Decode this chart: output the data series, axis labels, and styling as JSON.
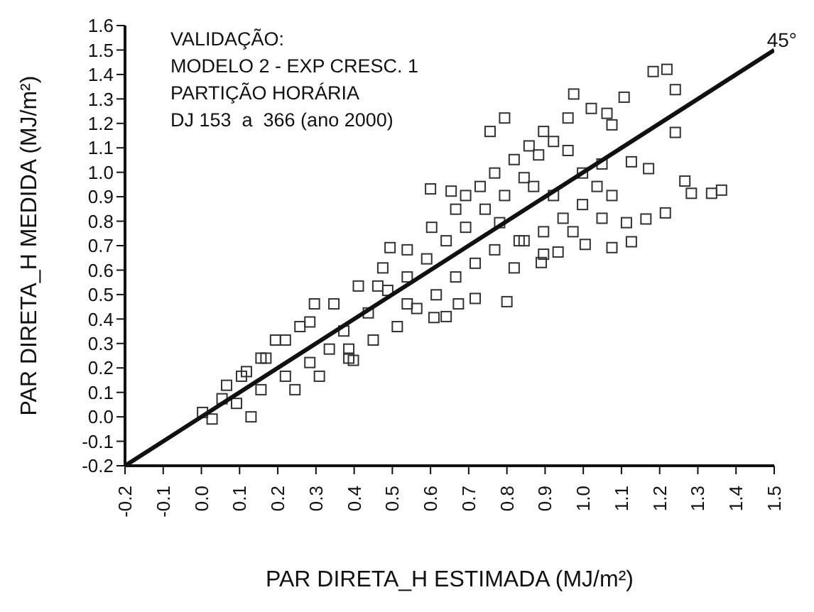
{
  "chart_data": {
    "type": "scatter",
    "xlabel": "PAR DIRETA_H  ESTIMADA (MJ/m²)",
    "ylabel": "PAR DIRETA_H  MEDIDA (MJ/m²)",
    "annotations": [
      "VALIDAÇÃO:",
      "MODELO 2 - EXP CRESC. 1",
      "PARTIÇÃO HORÁRIA",
      "DJ 153  a  366 (ano 2000)",
      "45°"
    ],
    "xlim": [
      -0.2,
      1.5
    ],
    "xticks": [
      -0.2,
      -0.1,
      {
        "value": 0,
        "label": "0.0"
      },
      0.1,
      0.2,
      0.3,
      0.4,
      0.5,
      0.6,
      0.7,
      0.8,
      0.9,
      {
        "value": 1,
        "label": "1.0"
      },
      1.1,
      1.2,
      1.3,
      1.4,
      1.5
    ],
    "ylim": [
      -0.2,
      1.6
    ],
    "yticks": [
      -0.2,
      -0.1,
      {
        "value": 0,
        "label": "0.0"
      },
      0.1,
      0.2,
      0.3,
      0.4,
      0.5,
      0.6,
      0.7,
      0.8,
      0.9,
      {
        "value": 1,
        "label": "1.0"
      },
      1.1,
      1.2,
      1.3,
      1.4,
      1.5,
      1.6
    ],
    "grid": false,
    "legend": false,
    "marker": "square",
    "series": [
      {
        "color": "#333333",
        "x": [
          1.183,
          1.219,
          1.241,
          0.975,
          1.107,
          1.021,
          1.062,
          1.075,
          0.794,
          0.756,
          0.96,
          0.896,
          1.241,
          1.266,
          1.283,
          1.336,
          1.362,
          1.126,
          1.171,
          1.215,
          1.164,
          1.113,
          1.126,
          1.075,
          1.005,
          0.934,
          0.89,
          0.819,
          0.8,
          0.717,
          0.673,
          0.641,
          0.609,
          0.6,
          0.654,
          0.692,
          0.494,
          0.398,
          0.386,
          0.003,
          0.028,
          0.13,
          0.092,
          0.066,
          0.118,
          0.169,
          0.194,
          0.258,
          0.296,
          0.156,
          0.22,
          0.284,
          0.335,
          0.373,
          0.437,
          0.488,
          0.539,
          0.59,
          0.641,
          0.692,
          0.743,
          0.794,
          0.845,
          0.883,
          0.858,
          0.819,
          0.768,
          0.73,
          0.666,
          0.603,
          0.539,
          0.475,
          0.411,
          0.347,
          0.284,
          0.22,
          0.156,
          0.105,
          0.054,
          0.245,
          0.309,
          0.386,
          0.45,
          0.513,
          0.564,
          0.615,
          0.666,
          0.717,
          0.768,
          0.832,
          0.896,
          0.947,
          0.998,
          1.036,
          0.998,
          0.96,
          0.922,
          1.049,
          1.075,
          1.049,
          0.973,
          0.896,
          0.845,
          0.781,
          0.922,
          0.87,
          0.539,
          0.462
        ],
        "values": [
          1.412,
          1.421,
          1.338,
          1.32,
          1.307,
          1.261,
          1.241,
          1.194,
          1.222,
          1.167,
          1.222,
          1.167,
          1.163,
          0.964,
          0.914,
          0.914,
          0.927,
          1.043,
          1.015,
          0.834,
          0.809,
          0.794,
          0.716,
          0.692,
          0.705,
          0.674,
          0.631,
          0.609,
          0.471,
          0.484,
          0.462,
          0.41,
          0.406,
          0.932,
          0.923,
          0.905,
          0.692,
          0.231,
          0.277,
          0.018,
          -0.009,
          0.0,
          0.055,
          0.129,
          0.185,
          0.24,
          0.314,
          0.369,
          0.462,
          0.111,
          0.166,
          0.222,
          0.277,
          0.351,
          0.425,
          0.517,
          0.572,
          0.646,
          0.72,
          0.775,
          0.849,
          0.905,
          0.978,
          1.071,
          1.108,
          1.052,
          0.997,
          0.942,
          0.849,
          0.775,
          0.683,
          0.609,
          0.535,
          0.462,
          0.388,
          0.314,
          0.24,
          0.166,
          0.074,
          0.111,
          0.166,
          0.24,
          0.314,
          0.369,
          0.443,
          0.499,
          0.572,
          0.628,
          0.683,
          0.72,
          0.757,
          0.812,
          0.868,
          0.942,
          0.997,
          1.089,
          1.126,
          1.034,
          0.905,
          0.812,
          0.757,
          0.665,
          0.72,
          0.794,
          0.905,
          0.942,
          0.462,
          0.535
        ]
      },
      {
        "type": "line",
        "color": "#111111",
        "line_style": "solid",
        "marker": "none",
        "x": [
          -0.2,
          1.5
        ],
        "values": [
          -0.2,
          1.5
        ]
      }
    ]
  }
}
